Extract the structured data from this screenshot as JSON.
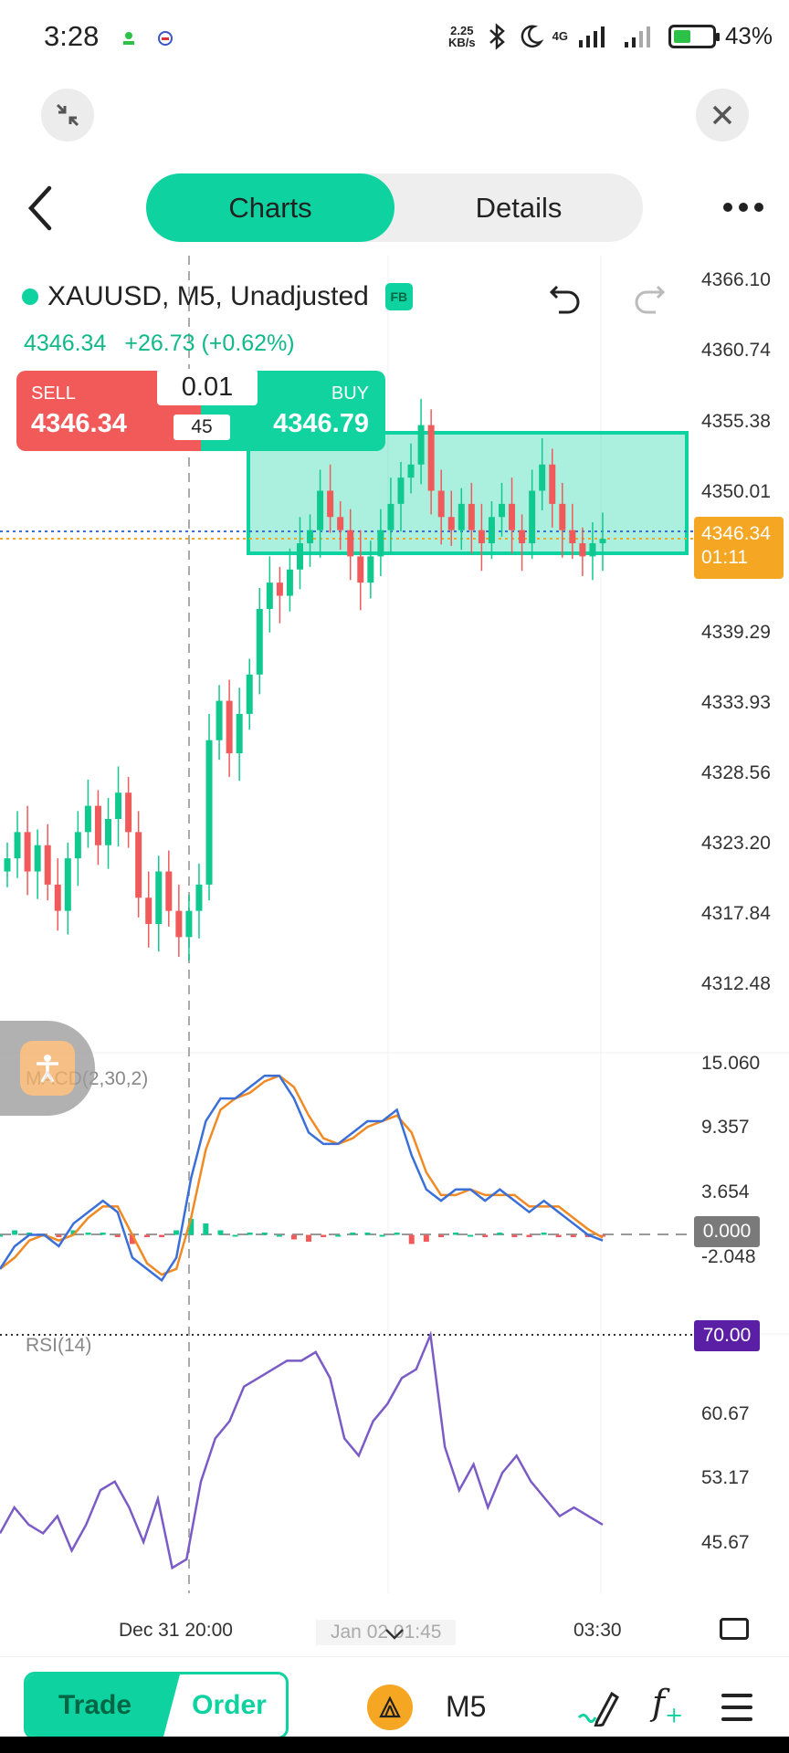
{
  "status_bar": {
    "time": "3:28",
    "net_speed_value": "2.25",
    "net_speed_unit": "KB/s",
    "network": "4G",
    "battery": "43%"
  },
  "header": {
    "tabs": [
      "Charts",
      "Details"
    ],
    "active_tab": "Charts"
  },
  "symbol": {
    "title": "XAUUSD, M5, Unadjusted",
    "badge": "FB",
    "last_price": "4346.34",
    "change": "+26.73 (+0.62%)"
  },
  "trade_box": {
    "sell_label": "SELL",
    "sell_price": "4346.34",
    "buy_label": "BUY",
    "buy_price": "4346.79",
    "lot": "0.01",
    "spread": "45"
  },
  "price_axis": [
    "4366.10",
    "4360.74",
    "4355.38",
    "4350.01",
    "4339.29",
    "4333.93",
    "4328.56",
    "4323.20",
    "4317.84",
    "4312.48"
  ],
  "current_price_tag": {
    "price": "4346.34",
    "countdown": "01:11"
  },
  "macd": {
    "label": "MACD(2,30,2)",
    "axis": [
      "15.060",
      "9.357",
      "3.654",
      "-2.048"
    ],
    "zero_tag": "0.000"
  },
  "rsi": {
    "label": "RSI(14)",
    "axis": [
      "60.67",
      "53.17",
      "45.67"
    ],
    "level_tag": "70.00"
  },
  "time_axis": {
    "left": "Dec 31 20:00",
    "center": "Jan 02 01:45",
    "right": "03:30"
  },
  "bottom_bar": {
    "trade": "Trade",
    "order": "Order",
    "timeframe": "M5"
  },
  "colors": {
    "accent": "#0ed3a0",
    "sell": "#f25a5a",
    "up": "#10c98f",
    "down": "#f05a5a",
    "rsi_line": "#7b5bc6",
    "macd_line": "#3a6fd8",
    "signal_line": "#f08a24"
  },
  "icons": [
    "collapse-icon",
    "close-icon",
    "back-arrow-icon",
    "more-dots-icon",
    "undo-icon",
    "redo-icon",
    "accessibility-icon",
    "fullscreen-icon",
    "chevron-down-icon",
    "broker-icon",
    "draw-icon",
    "fx-icon",
    "menu-icon"
  ]
}
